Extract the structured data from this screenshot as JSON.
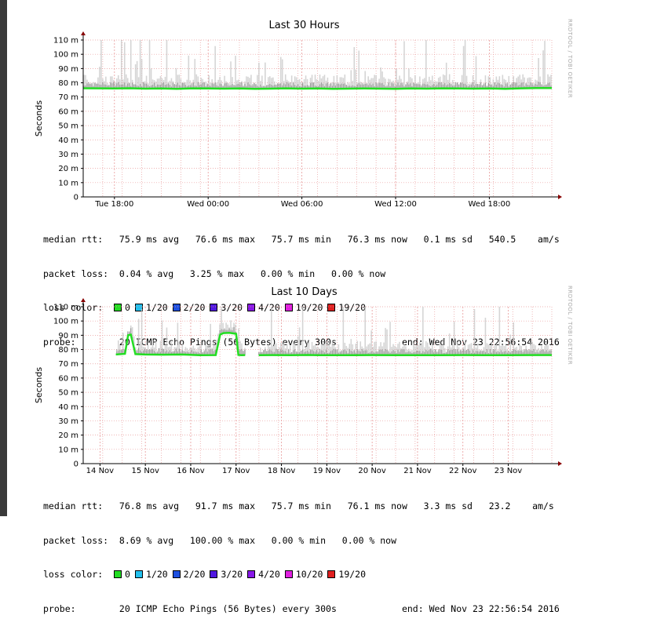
{
  "colors": {
    "median_line": "#22dd22",
    "smoke": "#c8c8c8",
    "grid": "#e89a9a",
    "axis": "#000000",
    "arrow": "#880000"
  },
  "watermark": "RRDTOOL / TOBI OETIKER",
  "ylabel": "Seconds",
  "loss_colors": [
    {
      "label": "0",
      "color": "#22dd22"
    },
    {
      "label": "1/20",
      "color": "#22c0ee"
    },
    {
      "label": "2/20",
      "color": "#1e50e0"
    },
    {
      "label": "3/20",
      "color": "#5018e0"
    },
    {
      "label": "4/20",
      "color": "#8818e8"
    },
    {
      "label": "10/20",
      "color": "#e020e0"
    },
    {
      "label": "19/20",
      "color": "#e02020"
    }
  ],
  "panels": [
    {
      "legend": {
        "median_rtt": "median rtt:   75.9 ms avg   76.6 ms max   75.7 ms min   76.3 ms now   0.1 ms sd   540.5    am/s",
        "packet_loss": "packet loss:  0.04 % avg   3.25 % max   0.00 % min   0.00 % now",
        "loss_color_label": "loss color:",
        "probe": "probe:        20 ICMP Echo Pings (56 Bytes) every 300s            end: Wed Nov 23 22:56:54 2016"
      }
    },
    {
      "legend": {
        "median_rtt": "median rtt:   76.8 ms avg   91.7 ms max   75.7 ms min   76.1 ms now   3.3 ms sd   23.2    am/s",
        "packet_loss": "packet loss:  8.69 % avg   100.00 % max   0.00 % min   0.00 % now",
        "loss_color_label": "loss color:",
        "probe": "probe:        20 ICMP Echo Pings (56 Bytes) every 300s            end: Wed Nov 23 22:56:54 2016"
      }
    }
  ],
  "chart_data": [
    {
      "type": "line",
      "title": "Last 30 Hours",
      "xlabel": "",
      "ylabel": "Seconds",
      "ylim": [
        0,
        110
      ],
      "yticks": [
        0,
        10,
        20,
        30,
        40,
        50,
        60,
        70,
        80,
        90,
        100,
        110
      ],
      "ytick_labels": [
        "0",
        "10 m",
        "20 m",
        "30 m",
        "40 m",
        "50 m",
        "60 m",
        "70 m",
        "80 m",
        "90 m",
        "100 m",
        "110 m"
      ],
      "x_unit": "hours",
      "xlim": [
        16,
        46
      ],
      "xticks": [
        18,
        24,
        30,
        36,
        42
      ],
      "xtick_labels": [
        "Tue 18:00",
        "Wed 00:00",
        "Wed 06:00",
        "Wed 12:00",
        "Wed 18:00"
      ],
      "grid": true,
      "series": [
        {
          "name": "median rtt",
          "x": [
            16,
            17,
            18,
            19,
            20,
            21,
            22,
            23,
            24,
            25,
            26,
            27,
            28,
            29,
            30,
            31,
            32,
            33,
            34,
            35,
            36,
            37,
            38,
            39,
            40,
            41,
            42,
            43,
            44,
            45,
            46
          ],
          "y": [
            76.2,
            76.1,
            76.0,
            76.2,
            75.9,
            76.0,
            75.8,
            76.1,
            76.0,
            75.9,
            76.0,
            75.8,
            75.9,
            76.1,
            75.9,
            76.0,
            75.8,
            75.9,
            76.0,
            75.9,
            75.8,
            76.0,
            75.9,
            76.1,
            76.0,
            75.9,
            76.0,
            75.8,
            76.1,
            76.3,
            76.3
          ]
        }
      ]
    },
    {
      "type": "line",
      "title": "Last 10 Days",
      "xlabel": "",
      "ylabel": "Seconds",
      "ylim": [
        0,
        110
      ],
      "yticks": [
        0,
        10,
        20,
        30,
        40,
        50,
        60,
        70,
        80,
        90,
        100,
        110
      ],
      "ytick_labels": [
        "0",
        "10 m",
        "20 m",
        "30 m",
        "40 m",
        "50 m",
        "60 m",
        "70 m",
        "80 m",
        "90 m",
        "100 m",
        "110 m"
      ],
      "x_unit": "days",
      "xlim": [
        13.63,
        23.96
      ],
      "xticks": [
        14,
        15,
        16,
        17,
        18,
        19,
        20,
        21,
        22,
        23
      ],
      "xtick_labels": [
        "14 Nov",
        "15 Nov",
        "16 Nov",
        "17 Nov",
        "18 Nov",
        "19 Nov",
        "20 Nov",
        "21 Nov",
        "22 Nov",
        "23 Nov"
      ],
      "grid": true,
      "series": [
        {
          "name": "median rtt",
          "x": [
            14.35,
            14.55,
            14.62,
            14.68,
            14.78,
            15.0,
            15.4,
            15.8,
            16.2,
            16.55,
            16.65,
            16.72,
            16.85,
            17.0,
            17.05,
            17.12,
            17.2,
            17.3,
            17.5,
            17.8,
            18.2,
            18.6,
            18.8,
            18.82,
            18.85,
            19.2,
            19.6,
            20.0,
            20.5,
            21.0,
            21.5,
            22.0,
            22.5,
            23.0,
            23.5,
            23.96
          ],
          "y": [
            76.5,
            77.0,
            90.0,
            90.5,
            76.8,
            76.5,
            76.4,
            76.5,
            76.0,
            76.1,
            90.5,
            91.5,
            91.7,
            91.0,
            76.2,
            76.0,
            76.1,
            null,
            76.0,
            76.1,
            76.0,
            76.2,
            76.0,
            76.0,
            76.0,
            76.0,
            76.0,
            76.1,
            76.0,
            76.0,
            76.0,
            76.1,
            76.0,
            76.0,
            76.1,
            76.1
          ]
        }
      ]
    }
  ]
}
